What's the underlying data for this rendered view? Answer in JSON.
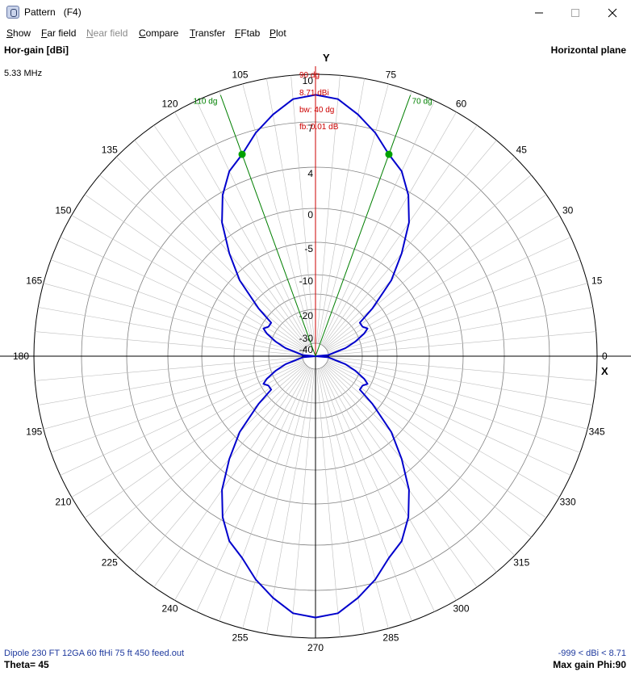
{
  "window": {
    "title": "Pattern   (F4)",
    "icon": "pattern-app-icon",
    "minimize_icon": "minimize-icon",
    "maximize_icon": "maximize-icon",
    "close_icon": "close-icon"
  },
  "menu": [
    {
      "label": "Show",
      "enabled": true
    },
    {
      "label": "Far field",
      "enabled": true
    },
    {
      "label": "Near field",
      "enabled": false
    },
    {
      "label": "Compare",
      "enabled": true
    },
    {
      "label": "Transfer",
      "enabled": true
    },
    {
      "label": "FFtab",
      "enabled": true
    },
    {
      "label": "Plot",
      "enabled": true
    }
  ],
  "header": {
    "gain_label": "Hor-gain [dBi]",
    "frequency": "5.33 MHz",
    "plane": "Horizontal plane"
  },
  "footer": {
    "file": "Dipole 230 FT 12GA 60 ftHi 75 ft 450 feed.out",
    "theta": "Theta= 45",
    "range": "-999 < dBi < 8.71",
    "max_gain": "Max gain Phi:90"
  },
  "colors": {
    "pattern": "#0000cc",
    "grid": "#808080",
    "axes": "#000000",
    "max_line": "#cc0000",
    "beamwidth_lines": "#008000",
    "footer_text": "#1f3a9e"
  },
  "chart_data": {
    "type": "polar",
    "angle_unit": "degrees",
    "angle_ticks": [
      0,
      15,
      30,
      45,
      60,
      75,
      90,
      105,
      120,
      135,
      150,
      165,
      180,
      195,
      210,
      225,
      240,
      255,
      270,
      285,
      300,
      315,
      330,
      345
    ],
    "angle_tick_labels_shown": [
      "0",
      "15",
      "30",
      "45",
      "60",
      "75",
      "105",
      "120",
      "135",
      "150",
      "165",
      "180",
      "195",
      "210",
      "225",
      "240",
      "255",
      "270",
      "285",
      "300",
      "315",
      "330",
      "345"
    ],
    "radial_ticks_dbi": [
      10,
      7,
      4,
      0,
      -5,
      -10,
      -20,
      -30,
      -40
    ],
    "radial_range_dbi": [
      -40,
      10
    ],
    "axis_labels": {
      "x": "X",
      "y": "Y"
    },
    "max_gain_marker": {
      "angle": 90,
      "label_angle": "90 dg",
      "label_gain": "8.71 dBi"
    },
    "beamwidth": {
      "label": "bw: 40 dg",
      "edge_angles": [
        70,
        110
      ],
      "edge_labels": [
        "70 dg",
        "110 dg"
      ],
      "edge_gain_dbi": 5.71
    },
    "front_back": {
      "label": "fb: 0.01 dB"
    },
    "series": [
      {
        "points": [
          {
            "phi": 0,
            "gain": -99
          },
          {
            "phi": 5,
            "gain": -40
          },
          {
            "phi": 15,
            "gain": -27
          },
          {
            "phi": 20,
            "gain": -22
          },
          {
            "phi": 25,
            "gain": -18
          },
          {
            "phi": 28,
            "gain": -16.5
          },
          {
            "phi": 32,
            "gain": -17.5
          },
          {
            "phi": 37,
            "gain": -17.5
          },
          {
            "phi": 40,
            "gain": -12
          },
          {
            "phi": 45,
            "gain": -6
          },
          {
            "phi": 50,
            "gain": -2
          },
          {
            "phi": 55,
            "gain": 1.5
          },
          {
            "phi": 60,
            "gain": 3.7
          },
          {
            "phi": 65,
            "gain": 5
          },
          {
            "phi": 70,
            "gain": 5.71
          },
          {
            "phi": 75,
            "gain": 6.8
          },
          {
            "phi": 80,
            "gain": 7.7
          },
          {
            "phi": 85,
            "gain": 8.5
          },
          {
            "phi": 90,
            "gain": 8.71
          }
        ],
        "symmetry": "mirror about 90 and 180 (identical in all four quadrants)"
      }
    ]
  }
}
